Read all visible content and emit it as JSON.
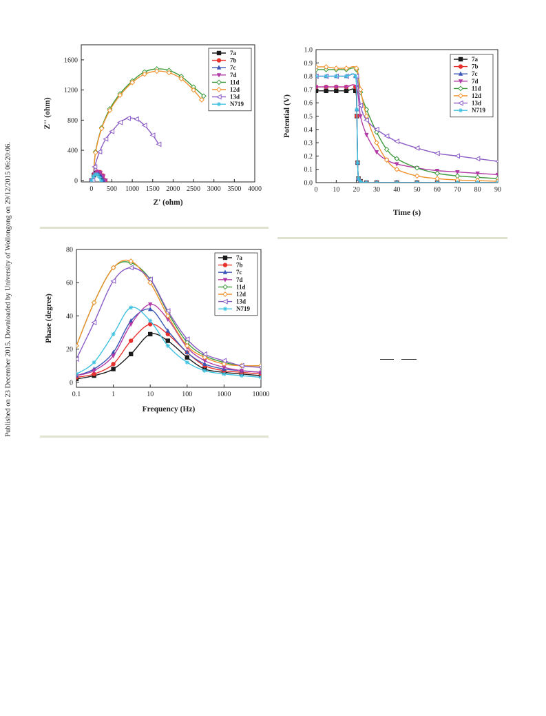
{
  "sidebar_note": "Published on 23 December 2015. Downloaded by University of Wollongong on 29/12/2015 06:20:06.",
  "colors": {
    "7a": "#1a1a1a",
    "7b": "#e8302c",
    "7c": "#3a55b4",
    "7d": "#b23aa6",
    "11d": "#3c9a3c",
    "12d": "#f0922c",
    "13d": "#8a5cc4",
    "N719": "#3fc1e0",
    "rule": "#e0e2cf"
  },
  "chart_data": [
    {
      "id": "nyquist",
      "type": "line",
      "xlabel": "Z' (ohm)",
      "ylabel": "Z'' (ohm)",
      "xlim": [
        -250,
        4000
      ],
      "ylim": [
        -20,
        1800
      ],
      "xticks": [
        0,
        500,
        1000,
        1500,
        2000,
        2500,
        3000,
        3500,
        4000
      ],
      "yticks": [
        0,
        400,
        800,
        1200,
        1600
      ],
      "legend_position": "top-right",
      "series": [
        {
          "name": "7a",
          "marker": "square",
          "x": [
            0,
            60,
            120,
            180,
            240,
            300
          ],
          "y": [
            0,
            70,
            100,
            95,
            55,
            0
          ]
        },
        {
          "name": "7b",
          "marker": "circle",
          "x": [
            0,
            70,
            140,
            210,
            280,
            340
          ],
          "y": [
            0,
            80,
            115,
            110,
            65,
            0
          ]
        },
        {
          "name": "7c",
          "marker": "triangle",
          "x": [
            0,
            60,
            120,
            180,
            240,
            290
          ],
          "y": [
            0,
            75,
            105,
            100,
            60,
            0
          ]
        },
        {
          "name": "7d",
          "marker": "triangle-down",
          "x": [
            0,
            70,
            140,
            220,
            290,
            350
          ],
          "y": [
            0,
            85,
            115,
            105,
            60,
            0
          ]
        },
        {
          "name": "11d",
          "marker": "diamond",
          "x": [
            40,
            100,
            250,
            450,
            700,
            1000,
            1300,
            1600,
            1900,
            2200,
            2500,
            2750
          ],
          "y": [
            0,
            380,
            700,
            950,
            1150,
            1320,
            1440,
            1480,
            1460,
            1380,
            1240,
            1120
          ]
        },
        {
          "name": "12d",
          "marker": "diamond",
          "x": [
            40,
            100,
            250,
            450,
            700,
            1000,
            1300,
            1600,
            1900,
            2200,
            2500,
            2700
          ],
          "y": [
            0,
            370,
            690,
            930,
            1130,
            1300,
            1410,
            1450,
            1430,
            1350,
            1200,
            1070
          ]
        },
        {
          "name": "13d",
          "marker": "triangle-left",
          "x": [
            30,
            80,
            200,
            350,
            500,
            700,
            900,
            1100,
            1300,
            1500,
            1650
          ],
          "y": [
            0,
            180,
            380,
            550,
            650,
            770,
            825,
            815,
            730,
            600,
            480
          ]
        },
        {
          "name": "N719",
          "marker": "star",
          "x": [
            0,
            50,
            100,
            150,
            200,
            240
          ],
          "y": [
            0,
            55,
            80,
            75,
            40,
            0
          ]
        }
      ]
    },
    {
      "id": "ocvd",
      "type": "line",
      "xlabel": "Time (s)",
      "ylabel": "Potential (V)",
      "xlim": [
        0,
        90
      ],
      "ylim": [
        0,
        1.0
      ],
      "xticks": [
        0,
        10,
        20,
        30,
        40,
        50,
        60,
        70,
        80,
        90
      ],
      "yticks": [
        0.0,
        0.1,
        0.2,
        0.3,
        0.4,
        0.5,
        0.6,
        0.7,
        0.8,
        0.9,
        1.0
      ],
      "legend_position": "top-right",
      "series": [
        {
          "name": "7a",
          "marker": "square",
          "x": [
            0,
            5,
            10,
            15,
            19.5,
            20.2,
            20.6,
            21,
            22,
            25,
            30,
            40,
            50,
            60,
            70,
            80,
            90
          ],
          "y": [
            0.69,
            0.69,
            0.69,
            0.69,
            0.69,
            0.5,
            0.15,
            0.03,
            0.01,
            0,
            0,
            0,
            0,
            0,
            0,
            0,
            0
          ]
        },
        {
          "name": "7b",
          "marker": "circle",
          "x": [
            0,
            5,
            10,
            15,
            19.5,
            20.2,
            20.6,
            21,
            22,
            25,
            30,
            40,
            50,
            60,
            70,
            80,
            90
          ],
          "y": [
            0.72,
            0.72,
            0.72,
            0.72,
            0.72,
            0.5,
            0.15,
            0.03,
            0.01,
            0,
            0,
            0,
            0,
            0,
            0,
            0,
            0
          ]
        },
        {
          "name": "7c",
          "marker": "triangle",
          "x": [
            0,
            5,
            10,
            15,
            19.5,
            20.2,
            20.6,
            21,
            22,
            25,
            30,
            40,
            50,
            60,
            70,
            80,
            90
          ],
          "y": [
            0.8,
            0.8,
            0.8,
            0.8,
            0.8,
            0.55,
            0.15,
            0.03,
            0.01,
            0,
            0,
            0,
            0,
            0,
            0,
            0,
            0
          ]
        },
        {
          "name": "7d",
          "marker": "triangle-down",
          "x": [
            0,
            5,
            10,
            15,
            20,
            22,
            25,
            30,
            35,
            40,
            50,
            60,
            70,
            80,
            90
          ],
          "y": [
            0.72,
            0.72,
            0.72,
            0.72,
            0.72,
            0.5,
            0.36,
            0.23,
            0.17,
            0.14,
            0.11,
            0.09,
            0.08,
            0.07,
            0.06
          ]
        },
        {
          "name": "11d",
          "marker": "diamond",
          "x": [
            0,
            5,
            10,
            15,
            20,
            22,
            25,
            30,
            35,
            40,
            50,
            60,
            70,
            80,
            90
          ],
          "y": [
            0.85,
            0.85,
            0.85,
            0.85,
            0.85,
            0.68,
            0.55,
            0.38,
            0.25,
            0.18,
            0.11,
            0.07,
            0.05,
            0.04,
            0.03
          ]
        },
        {
          "name": "12d",
          "marker": "diamond",
          "x": [
            0,
            5,
            10,
            15,
            20,
            22,
            25,
            30,
            35,
            40,
            50,
            60,
            70,
            80,
            90
          ],
          "y": [
            0.87,
            0.87,
            0.86,
            0.86,
            0.86,
            0.7,
            0.5,
            0.3,
            0.17,
            0.1,
            0.05,
            0.03,
            0.02,
            0.015,
            0.01
          ]
        },
        {
          "name": "13d",
          "marker": "triangle-left",
          "x": [
            0,
            5,
            10,
            15,
            20,
            22,
            25,
            30,
            35,
            40,
            50,
            60,
            70,
            80,
            90
          ],
          "y": [
            0.8,
            0.8,
            0.8,
            0.8,
            0.8,
            0.58,
            0.47,
            0.4,
            0.35,
            0.31,
            0.26,
            0.22,
            0.2,
            0.18,
            0.16
          ]
        },
        {
          "name": "N719",
          "marker": "star",
          "x": [
            0,
            5,
            10,
            15,
            19.5,
            20.2,
            20.6,
            21,
            22,
            25,
            30,
            40,
            50,
            60,
            70,
            80,
            90
          ],
          "y": [
            0.8,
            0.8,
            0.8,
            0.8,
            0.8,
            0.55,
            0.15,
            0.03,
            0.01,
            0,
            0,
            0,
            0,
            0,
            0,
            0,
            0
          ]
        }
      ]
    },
    {
      "id": "bode",
      "type": "line",
      "xlabel": "Frequency (Hz)",
      "ylabel": "Phase (degree)",
      "xscale": "log",
      "xlim": [
        0.1,
        10000
      ],
      "ylim": [
        -3,
        80
      ],
      "xticks": [
        0.1,
        1,
        10,
        100,
        1000,
        10000
      ],
      "xtick_labels": [
        "0.1",
        "1",
        "10",
        "100",
        "1000",
        "10000"
      ],
      "yticks": [
        0,
        20,
        40,
        60,
        80
      ],
      "legend_position": "top-right",
      "series": [
        {
          "name": "7a",
          "marker": "square",
          "x": [
            0.1,
            0.3,
            1,
            3,
            10,
            30,
            100,
            300,
            1000,
            3000,
            10000
          ],
          "y": [
            2,
            4,
            8,
            17,
            29,
            25,
            15,
            8,
            6,
            5,
            4
          ]
        },
        {
          "name": "7b",
          "marker": "circle",
          "x": [
            0.1,
            0.3,
            1,
            3,
            10,
            30,
            100,
            300,
            1000,
            3000,
            10000
          ],
          "y": [
            3,
            5,
            11,
            25,
            35,
            29,
            18,
            10,
            7,
            6,
            5
          ]
        },
        {
          "name": "7c",
          "marker": "triangle",
          "x": [
            0.1,
            0.3,
            1,
            3,
            10,
            30,
            100,
            300,
            1000,
            3000,
            10000
          ],
          "y": [
            4,
            8,
            18,
            37,
            44,
            31,
            18,
            11,
            8,
            7,
            6
          ]
        },
        {
          "name": "7d",
          "marker": "triangle-down",
          "x": [
            0.1,
            0.3,
            1,
            3,
            10,
            30,
            100,
            300,
            1000,
            3000,
            10000
          ],
          "y": [
            4,
            7,
            16,
            35,
            47,
            38,
            21,
            13,
            9,
            7,
            6
          ]
        },
        {
          "name": "11d",
          "marker": "diamond",
          "x": [
            0.1,
            0.3,
            1,
            3,
            10,
            30,
            100,
            300,
            1000,
            3000,
            10000
          ],
          "y": [
            22,
            48,
            69,
            72,
            62,
            42,
            24,
            16,
            12,
            10,
            10
          ]
        },
        {
          "name": "12d",
          "marker": "diamond",
          "x": [
            0.1,
            0.3,
            1,
            3,
            10,
            30,
            100,
            300,
            1000,
            3000,
            10000
          ],
          "y": [
            22,
            48,
            69,
            73,
            60,
            40,
            22,
            15,
            11,
            10,
            10
          ]
        },
        {
          "name": "13d",
          "marker": "triangle-left",
          "x": [
            0.1,
            0.3,
            1,
            3,
            10,
            30,
            100,
            300,
            1000,
            3000,
            10000
          ],
          "y": [
            14,
            36,
            61,
            69,
            62,
            43,
            26,
            17,
            13,
            10,
            9
          ]
        },
        {
          "name": "N719",
          "marker": "star",
          "x": [
            0.1,
            0.3,
            1,
            3,
            10,
            30,
            100,
            300,
            1000,
            3000,
            10000
          ],
          "y": [
            5,
            12,
            29,
            45,
            37,
            22,
            12,
            7,
            5,
            4,
            3
          ]
        }
      ]
    }
  ]
}
